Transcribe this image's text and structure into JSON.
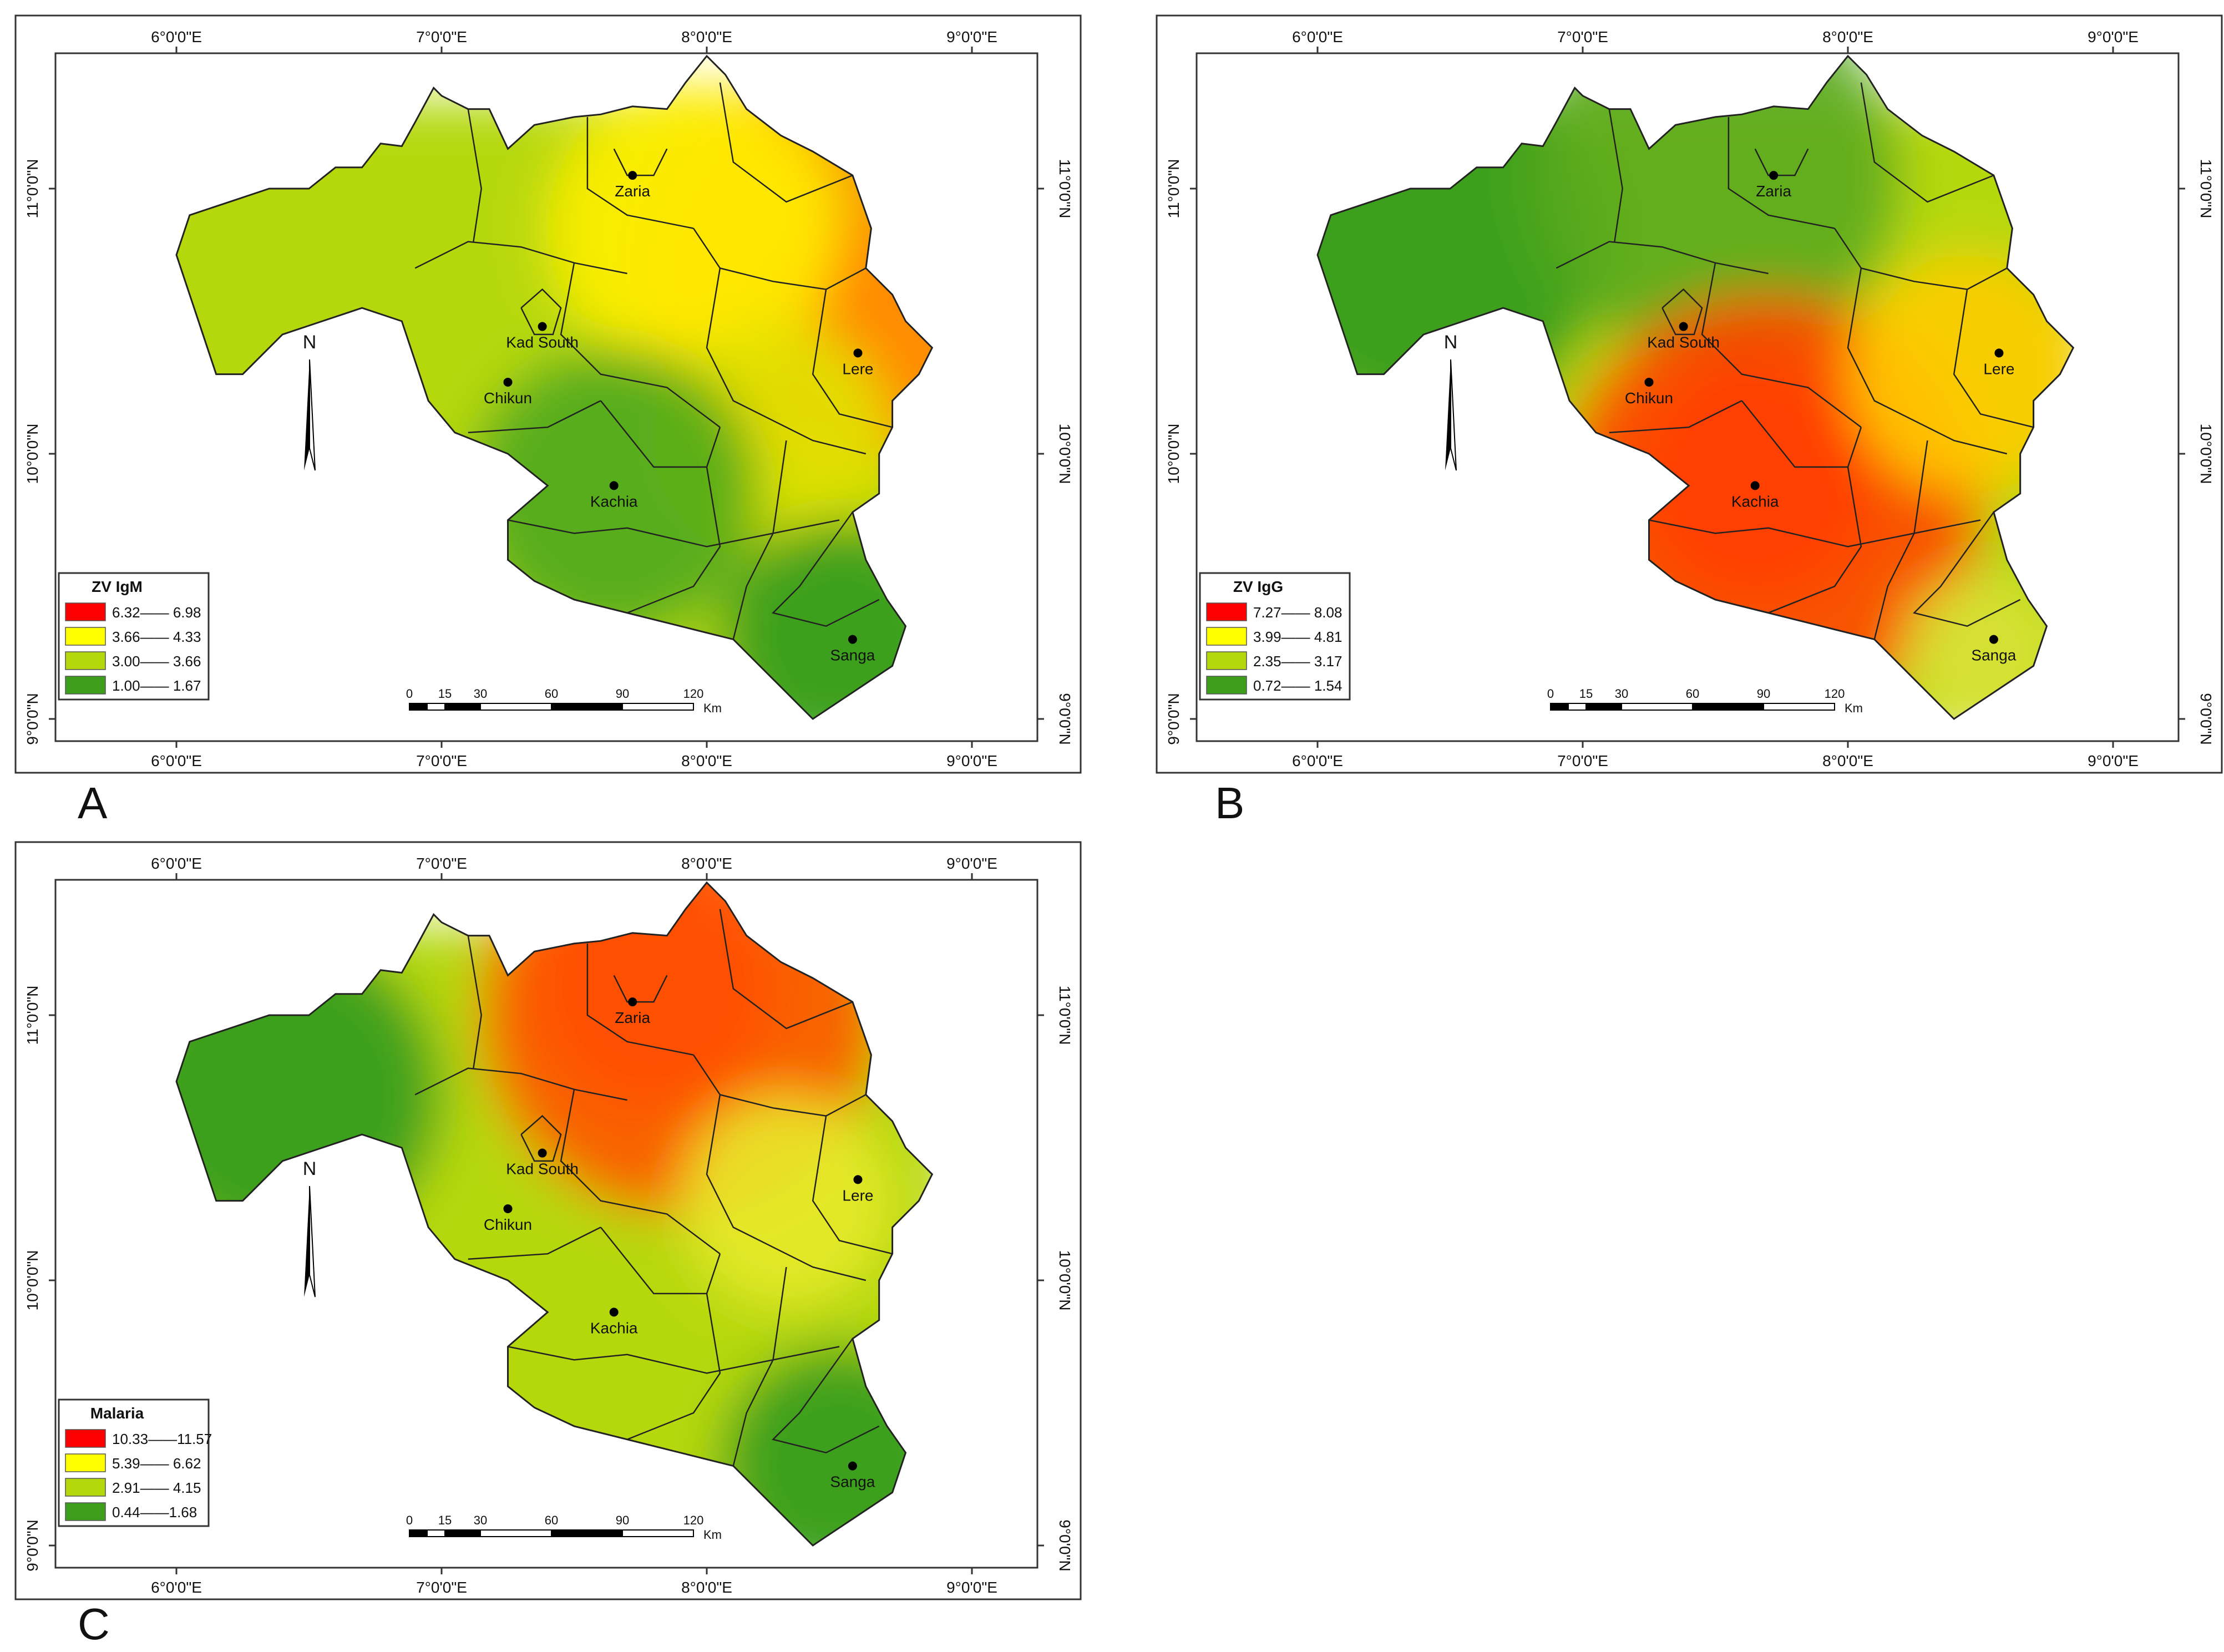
{
  "axes": {
    "top_bottom_ticks": [
      "6°0'0\"E",
      "7°0'0\"E",
      "8°0'0\"E",
      "9°0'0\"E"
    ],
    "side_ticks": [
      "11°0'0\"N",
      "10°0'0\"N",
      "9°0'0\"N"
    ]
  },
  "north_label": "N",
  "scale_bar": {
    "ticks": [
      "0",
      "15",
      "30",
      "60",
      "90",
      "120"
    ],
    "unit": "Km"
  },
  "places": [
    {
      "id": "zaria",
      "name": "Zaria"
    },
    {
      "id": "kad-south",
      "name": "Kad South"
    },
    {
      "id": "chikun",
      "name": "Chikun"
    },
    {
      "id": "lere",
      "name": "Lere"
    },
    {
      "id": "kachia",
      "name": "Kachia"
    },
    {
      "id": "sanga",
      "name": "Sanga"
    }
  ],
  "panels": [
    {
      "letter": "A",
      "legend_title": "ZV IgM",
      "classes": [
        {
          "label": "6.32—— 6.98",
          "color": "#ff0000"
        },
        {
          "label": "3.66—— 4.33",
          "color": "#ffff00"
        },
        {
          "label": "3.00—— 3.66",
          "color": "#b5d80c"
        },
        {
          "label": "1.00—— 1.67",
          "color": "#3c9e1a"
        }
      ],
      "hotspots": [
        {
          "lon": 8.55,
          "lat": 10.4,
          "color": "#ff0000",
          "r": 0.45
        },
        {
          "lon": 8.5,
          "lat": 10.7,
          "color": "#ff9900",
          "r": 0.75
        },
        {
          "lon": 7.95,
          "lat": 10.85,
          "color": "#ffee00",
          "r": 0.55
        },
        {
          "lon": 8.25,
          "lat": 10.05,
          "color": "#e0e300",
          "r": 0.45
        },
        {
          "lon": 7.65,
          "lat": 9.85,
          "color": "#4ea81c",
          "r": 0.55
        },
        {
          "lon": 8.5,
          "lat": 9.3,
          "color": "#2f9a1e",
          "r": 0.45
        }
      ]
    },
    {
      "letter": "B",
      "legend_title": "ZV IgG",
      "classes": [
        {
          "label": "7.27—— 8.08",
          "color": "#ff0000"
        },
        {
          "label": "3.99—— 4.81",
          "color": "#ffff00"
        },
        {
          "label": "2.35—— 3.17",
          "color": "#b5d80c"
        },
        {
          "label": "0.72—— 1.54",
          "color": "#3c9e1a"
        }
      ],
      "hotspots": [
        {
          "lon": 6.4,
          "lat": 10.8,
          "color": "#2f9a1e",
          "r": 0.7
        },
        {
          "lon": 7.5,
          "lat": 11.05,
          "color": "#5aaa1c",
          "r": 0.7
        },
        {
          "lon": 7.65,
          "lat": 9.9,
          "color": "#ff0000",
          "r": 0.45
        },
        {
          "lon": 7.7,
          "lat": 9.8,
          "color": "#ff4400",
          "r": 0.8
        },
        {
          "lon": 8.45,
          "lat": 10.3,
          "color": "#ffcc00",
          "r": 0.45
        },
        {
          "lon": 8.5,
          "lat": 9.25,
          "color": "#d8e234",
          "r": 0.3
        }
      ]
    },
    {
      "letter": "C",
      "legend_title": "Malaria",
      "classes": [
        {
          "label": "10.33——11.57",
          "color": "#ff0000"
        },
        {
          "label": "5.39—— 6.62",
          "color": "#ffff00"
        },
        {
          "label": "2.91—— 4.15",
          "color": "#b5d80c"
        },
        {
          "label": "0.44——1.68",
          "color": "#3c9e1a"
        }
      ],
      "hotspots": [
        {
          "lon": 7.8,
          "lat": 11.1,
          "color": "#ff0000",
          "r": 0.45
        },
        {
          "lon": 7.9,
          "lat": 11.0,
          "color": "#ff5500",
          "r": 0.75
        },
        {
          "lon": 6.4,
          "lat": 10.7,
          "color": "#2f9a1e",
          "r": 0.6
        },
        {
          "lon": 8.3,
          "lat": 10.3,
          "color": "#e8ea2a",
          "r": 0.4
        },
        {
          "lon": 8.5,
          "lat": 9.3,
          "color": "#2f9a1e",
          "r": 0.45
        }
      ]
    }
  ]
}
